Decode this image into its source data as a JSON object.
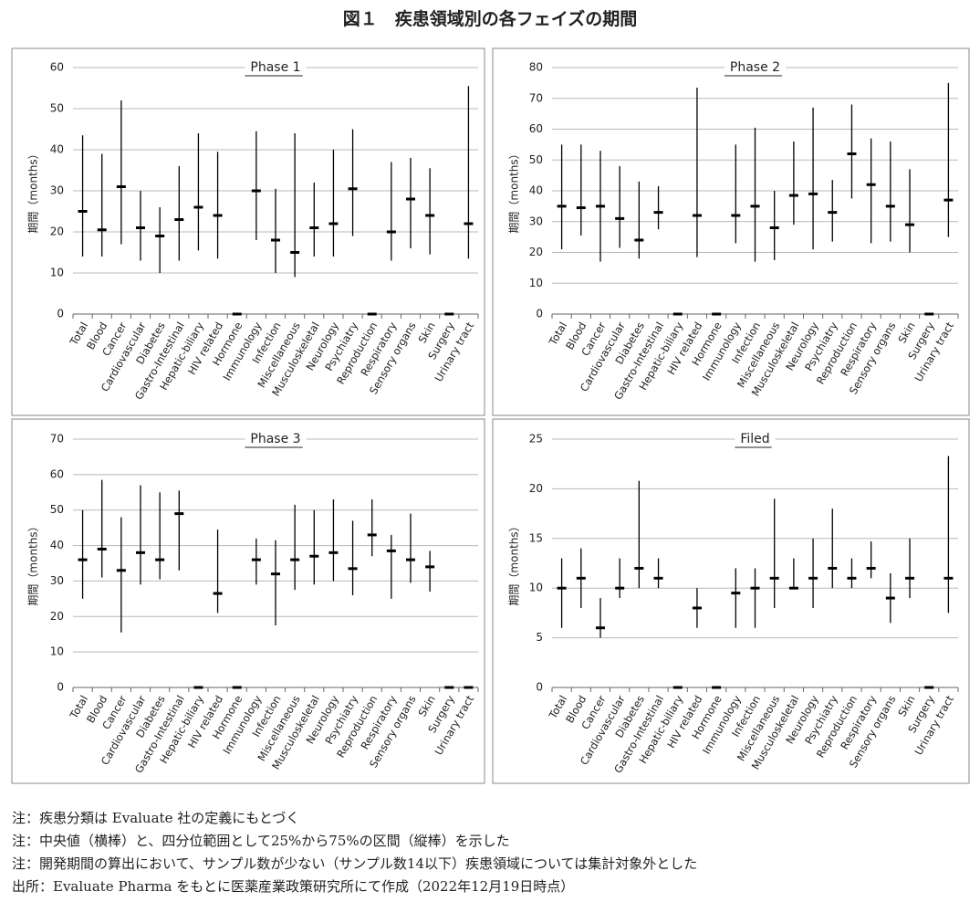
{
  "title": "図１　疾患領域別の各フェイズの期間",
  "chart_data": [
    {
      "type": "range",
      "title": "Phase 1",
      "y_label": "期間（months）",
      "color": "#000000",
      "grid": true,
      "categories": [
        "Total",
        "Blood",
        "Cancer",
        "Cardiovascular",
        "Diabetes",
        "Gastro-Intestinal",
        "Hepatic-biliary",
        "HIV related",
        "Hormone",
        "Immunology",
        "Infection",
        "Miscellaneous",
        "Musculoskeletal",
        "Neurology",
        "Psychiatry",
        "Reproduction",
        "Respiratory",
        "Sensory organs",
        "Skin",
        "Surgery",
        "Urinary tract"
      ],
      "medians": [
        25,
        20.5,
        31,
        21,
        19,
        23,
        26,
        24,
        0,
        30,
        18,
        15,
        21,
        22,
        30.5,
        0,
        20,
        28,
        24,
        0,
        22
      ],
      "lows": [
        14,
        14,
        17,
        13,
        10,
        13,
        15.5,
        13.5,
        null,
        18,
        10,
        9,
        14,
        14,
        19,
        null,
        13,
        16,
        14.5,
        null,
        13.5
      ],
      "highs": [
        43.5,
        39,
        52,
        30,
        26,
        36,
        44,
        39.5,
        null,
        44.5,
        30.5,
        44,
        32,
        40,
        45,
        null,
        37,
        38,
        35.5,
        null,
        55.5
      ],
      "ylim": [
        0,
        60
      ],
      "yticks": [
        0,
        10,
        20,
        30,
        40,
        50,
        60
      ]
    },
    {
      "type": "range",
      "title": "Phase 2",
      "y_label": "期間（months）",
      "color": "#000000",
      "grid": true,
      "categories": [
        "Total",
        "Blood",
        "Cancer",
        "Cardiovascular",
        "Diabetes",
        "Gastro-Intestinal",
        "Hepatic-biliary",
        "HIV related",
        "Hormone",
        "Immunology",
        "Infection",
        "Miscellaneous",
        "Musculoskeletal",
        "Neurology",
        "Psychiatry",
        "Reproduction",
        "Respiratory",
        "Sensory organs",
        "Skin",
        "Surgery",
        "Urinary tract"
      ],
      "medians": [
        35,
        34.5,
        35,
        31,
        24,
        33,
        0,
        32,
        0,
        32,
        35,
        28,
        38.5,
        39,
        33,
        52,
        42,
        35,
        29,
        0,
        37
      ],
      "lows": [
        21,
        25.5,
        17,
        21.5,
        18,
        27.5,
        null,
        18.5,
        null,
        23,
        17,
        17.5,
        29,
        21,
        23.5,
        37.5,
        23,
        23.5,
        20,
        null,
        25
      ],
      "highs": [
        55,
        55,
        53,
        48,
        43,
        41.5,
        null,
        73.5,
        null,
        55,
        60.5,
        40,
        56,
        67,
        43.5,
        68,
        57,
        56,
        47,
        null,
        75
      ],
      "ylim": [
        0,
        80
      ],
      "yticks": [
        0,
        10,
        20,
        30,
        40,
        50,
        60,
        70,
        80
      ]
    },
    {
      "type": "range",
      "title": "Phase 3",
      "y_label": "期間（months）",
      "color": "#000000",
      "grid": true,
      "categories": [
        "Total",
        "Blood",
        "Cancer",
        "Cardiovascular",
        "Diabetes",
        "Gastro-Intestinal",
        "Hepatic-biliary",
        "HIV related",
        "Hormone",
        "Immunology",
        "Infection",
        "Miscellaneous",
        "Musculoskeletal",
        "Neurology",
        "Psychiatry",
        "Reproduction",
        "Respiratory",
        "Sensory organs",
        "Skin",
        "Surgery",
        "Urinary tract"
      ],
      "medians": [
        36,
        39,
        33,
        38,
        36,
        49,
        0,
        26.5,
        0,
        36,
        32,
        36,
        37,
        38,
        33.5,
        43,
        38.5,
        36,
        34,
        0,
        0
      ],
      "lows": [
        25,
        31,
        15.5,
        29,
        30.5,
        33,
        null,
        21,
        null,
        29,
        17.5,
        27.5,
        29,
        30,
        26,
        37,
        25,
        29.5,
        27,
        null,
        null
      ],
      "highs": [
        50,
        58.5,
        48,
        57,
        55,
        55.5,
        null,
        44.5,
        null,
        42,
        41.5,
        51.5,
        50,
        53,
        47,
        53,
        43,
        49,
        38.5,
        null,
        null
      ],
      "ylim": [
        0,
        70
      ],
      "yticks": [
        0,
        10,
        20,
        30,
        40,
        50,
        60,
        70
      ]
    },
    {
      "type": "range",
      "title": "Filed",
      "y_label": "期間（months）",
      "color": "#000000",
      "grid": true,
      "categories": [
        "Total",
        "Blood",
        "Cancer",
        "Cardiovascular",
        "Diabetes",
        "Gastro-Intestinal",
        "Hepatic-biliary",
        "HIV related",
        "Hormone",
        "Immunology",
        "Infection",
        "Miscellaneous",
        "Musculoskeletal",
        "Neurology",
        "Psychiatry",
        "Reproduction",
        "Respiratory",
        "Sensory organs",
        "Skin",
        "Surgery",
        "Urinary tract"
      ],
      "medians": [
        10,
        11,
        6,
        10,
        12,
        11,
        0,
        8,
        0,
        9.5,
        10,
        11,
        10,
        11,
        12,
        11,
        12,
        9,
        11,
        0,
        11
      ],
      "lows": [
        6,
        8,
        5,
        9,
        10,
        10,
        null,
        6,
        null,
        6,
        6,
        8,
        10,
        8,
        10,
        10,
        11,
        6.5,
        9,
        null,
        7.5
      ],
      "highs": [
        13,
        14,
        9,
        13,
        20.8,
        13,
        null,
        10,
        null,
        12,
        12,
        19,
        13,
        15,
        18,
        13,
        14.7,
        11.5,
        15,
        null,
        23.3
      ],
      "ylim": [
        0,
        25
      ],
      "yticks": [
        0,
        5,
        10,
        15,
        20,
        25
      ]
    }
  ],
  "notes": [
    "注：疾患分類は Evaluate 社の定義にもとづく",
    "注：中央値（横棒）と、四分位範囲として25%から75%の区間（縦棒）を示した",
    "注：開発期間の算出において、サンプル数が少ない（サンプル数14以下）疾患領域については集計対象外とした",
    "出所：Evaluate Pharma をもとに医薬産業政策研究所にて作成（2022年12月19日時点）"
  ]
}
